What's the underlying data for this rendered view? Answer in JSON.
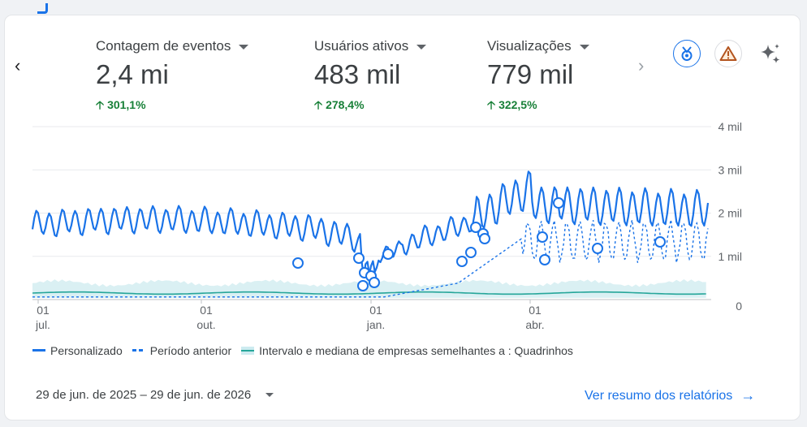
{
  "metrics": [
    {
      "title": "Contagem de eventos",
      "value": "2,4 mi",
      "delta": "301,1%"
    },
    {
      "title": "Usuários ativos",
      "value": "483 mil",
      "delta": "278,4%"
    },
    {
      "title": "Visualizações",
      "value": "779 mil",
      "delta": "322,5%"
    }
  ],
  "icons": {
    "prev": "chevron-left-icon",
    "next": "chevron-right-icon",
    "badge": "medal-icon",
    "warning": "warning-icon",
    "insights": "sparkle-icon"
  },
  "colors": {
    "primary": "#1a73e8",
    "band": "#d6eef2",
    "median": "#26a69a",
    "positive": "#188038"
  },
  "chart_data": {
    "type": "line",
    "y_ticks": [
      "0",
      "1 mil",
      "2 mil",
      "3 mil",
      "4 mil"
    ],
    "ylim": [
      0,
      4000
    ],
    "x_ticks": [
      {
        "day": "01",
        "month": "jul."
      },
      {
        "day": "01",
        "month": "out."
      },
      {
        "day": "01",
        "month": "jan."
      },
      {
        "day": "01",
        "month": "abr."
      }
    ],
    "series": [
      {
        "name": "Personalizado",
        "style": "solid"
      },
      {
        "name": "Período anterior",
        "style": "dashed"
      },
      {
        "name": "Intervalo e mediana de empresas semelhantes a : Quadrinhos",
        "style": "band"
      }
    ]
  },
  "date_range": "29 de jun. de 2025 – 29 de jun. de 2026",
  "report_link": "Ver resumo dos relatórios"
}
